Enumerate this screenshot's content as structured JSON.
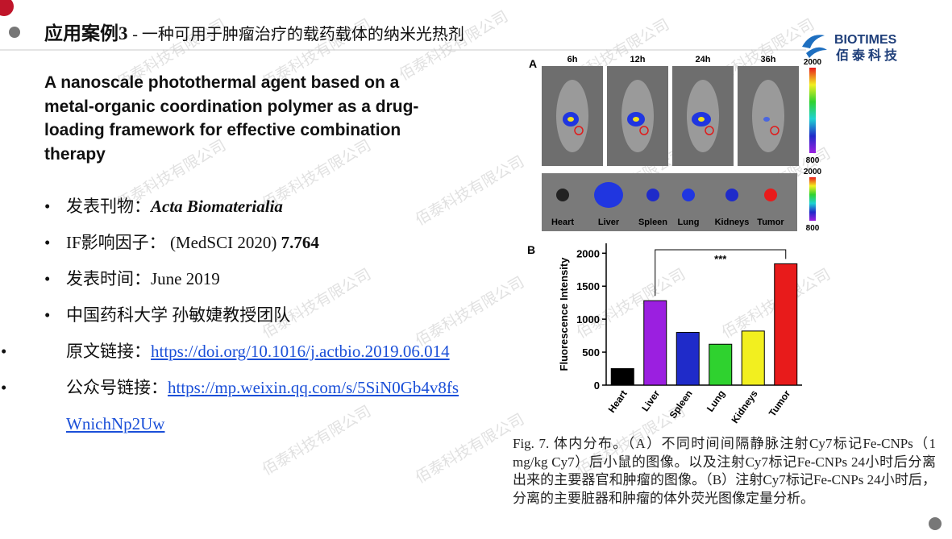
{
  "header": {
    "title_main": "应用案例3",
    "title_sub": "- 一种可用于肿瘤治疗的载药载体的纳米光热剂",
    "logo_en": "BIOTIMES",
    "logo_cn": "佰泰科技"
  },
  "watermark": "佰泰科技有限公司",
  "paper_title": "A nanoscale photothermal agent based on a metal-organic coordination polymer as a drug-loading framework for effective combination therapy",
  "bullets": [
    {
      "label": "发表刊物：",
      "value": "Acta Biomaterialia"
    },
    {
      "label": "IF影响因子：",
      "source": " (MedSCI 2020) ",
      "value": "7.764"
    },
    {
      "label": "发表时间：",
      "value": "June 2019"
    },
    {
      "text": "中国药科大学 孙敏婕教授团队"
    },
    {
      "label": "原文链接：",
      "link": "https://doi.org/10.1016/j.actbio.2019.06.014"
    },
    {
      "label": "公众号链接：",
      "link": "https://mp.weixin.qq.com/s/5SiN0Gb4v8fsWnichNp2Uw"
    }
  ],
  "figure": {
    "panel_a": {
      "label": "A",
      "times": [
        "6h",
        "12h",
        "24h",
        "36h"
      ],
      "scale_max": "2000",
      "scale_min": "800",
      "organs": [
        "Heart",
        "Liver",
        "Spleen",
        "Lung",
        "Kidneys",
        "Tumor"
      ]
    },
    "panel_b": {
      "label": "B",
      "type": "bar",
      "ylabel": "Fluorescence Intensity",
      "categories": [
        "Heart",
        "Liver",
        "Spleen",
        "Lung",
        "Kidneys",
        "Tumor"
      ],
      "values": [
        250,
        1280,
        800,
        620,
        820,
        1840
      ],
      "colors": [
        "#000000",
        "#9b1fe0",
        "#1f2bc9",
        "#2fd22f",
        "#f2ef1f",
        "#e81b1b"
      ],
      "ylim": [
        0,
        2150
      ],
      "yticks": [
        0,
        500,
        1000,
        1500,
        2000
      ],
      "annotation": "***"
    },
    "caption": "Fig. 7. 体内分布。（A）不同时间间隔静脉注射Cy7标记Fe-CNPs（1 mg/kg Cy7）后小鼠的图像。以及注射Cy7标记Fe-CNPs 24小时后分离出来的主要器官和肿瘤的图像。（B）注射Cy7标记Fe-CNPs 24小时后，分离的主要脏器和肿瘤的体外荧光图像定量分析。"
  }
}
